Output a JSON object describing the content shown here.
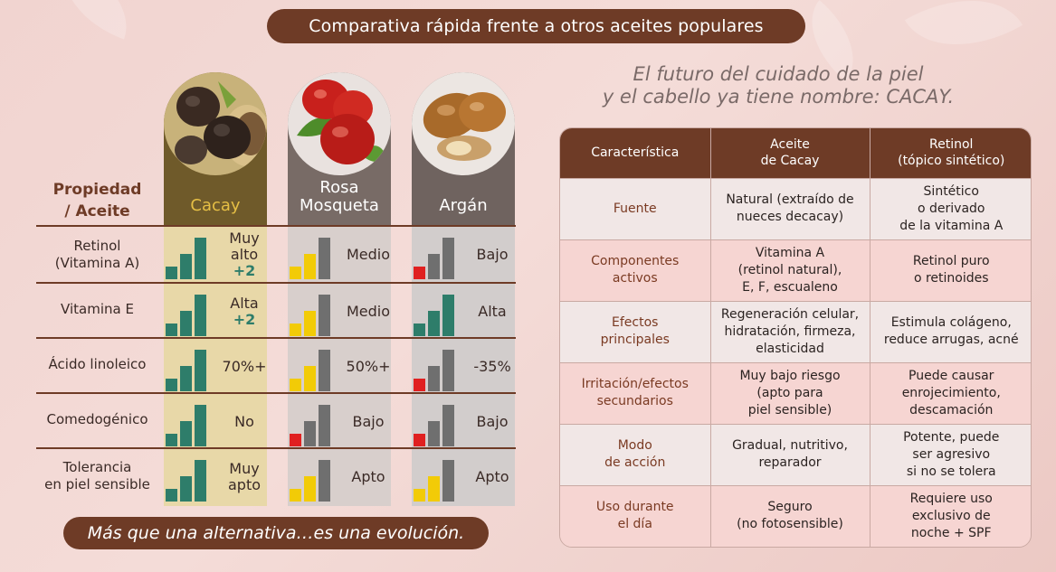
{
  "header": {
    "title": "Comparativa rápida frente a otros aceites populares"
  },
  "tagline": {
    "line1": "El futuro del cuidado de la piel",
    "line2": "y el cabello ya tiene nombre: CACAY."
  },
  "left_table": {
    "property_header_line1": "Propiedad",
    "property_header_line2": "/ Aceite",
    "columns": [
      {
        "name": "Cacay",
        "color": "#d9b13a"
      },
      {
        "name_line1": "Rosa",
        "name_line2": "Mosqueta",
        "color": "#ffffff"
      },
      {
        "name": "Argán",
        "color": "#ffffff"
      }
    ],
    "rows": [
      {
        "label_line1": "Retinol",
        "label_line2": "(Vitamina A)",
        "cacay": {
          "text_line1": "Muy",
          "text_line2": "alto",
          "plus": "+2",
          "level": 3
        },
        "rosa": {
          "text": "Medio",
          "level": 2
        },
        "argan": {
          "text": "Bajo",
          "level": 1
        }
      },
      {
        "label_line1": "Vitamina E",
        "cacay": {
          "text_line1": "Alta",
          "plus": "+2",
          "level": 3
        },
        "rosa": {
          "text": "Medio",
          "level": 2
        },
        "argan": {
          "text": "Alta",
          "level": 3
        }
      },
      {
        "label_line1": "Ácido linoleico",
        "cacay": {
          "text_line1": "70%+",
          "level": 3
        },
        "rosa": {
          "text": "50%+",
          "level": 2
        },
        "argan": {
          "text": "-35%",
          "level": 1
        }
      },
      {
        "label_line1": "Comedogénico",
        "cacay": {
          "text_line1": "No",
          "level": 3
        },
        "rosa": {
          "text": "Bajo",
          "level": 1
        },
        "argan": {
          "text": "Bajo",
          "level": 1
        }
      },
      {
        "label_line1": "Tolerancia",
        "label_line2": "en piel sensible",
        "cacay": {
          "text_line1": "Muy",
          "text_line2": "apto",
          "level": 3
        },
        "rosa": {
          "text": "Apto",
          "level": 2
        },
        "argan": {
          "text": "Apto",
          "level": 2
        }
      }
    ]
  },
  "footer_pill": "Más que una alternativa…es una evolución.",
  "right_table": {
    "headers": [
      "Característica",
      "Aceite de Cacay",
      "Retinol (tópico sintético)"
    ],
    "header_lines": {
      "h2a": "Aceite",
      "h2b": "de Cacay",
      "h3a": "Retinol",
      "h3b": "(tópico sintético)"
    },
    "rows": [
      {
        "c1": [
          "Fuente"
        ],
        "c2": [
          "Natural (extraído de",
          "nueces decacay)"
        ],
        "c3": [
          "Sintético",
          "o derivado",
          "de la vitamina A"
        ]
      },
      {
        "c1": [
          "Componentes",
          "activos"
        ],
        "c2": [
          "Vitamina A",
          "(retinol natural),",
          "E, F, escualeno"
        ],
        "c3": [
          "Retinol puro",
          "o retinoides"
        ]
      },
      {
        "c1": [
          "Efectos",
          "principales"
        ],
        "c2": [
          "Regeneración celular,",
          "hidratación, firmeza,",
          "elasticidad"
        ],
        "c3": [
          "Estimula colágeno,",
          "reduce arrugas, acné"
        ]
      },
      {
        "c1": [
          "Irritación/efectos",
          "secundarios"
        ],
        "c2": [
          "Muy bajo riesgo",
          "(apto para",
          "piel sensible)"
        ],
        "c3": [
          "Puede causar",
          "enrojecimiento,",
          "descamación"
        ]
      },
      {
        "c1": [
          "Modo",
          "de acción"
        ],
        "c2": [
          "Gradual, nutritivo,",
          "reparador"
        ],
        "c3": [
          "Potente, puede",
          "ser agresivo",
          "si no se tolera"
        ]
      },
      {
        "c1": [
          "Uso durante",
          "el día"
        ],
        "c2": [
          "Seguro",
          "(no fotosensible)"
        ],
        "c3": [
          "Requiere uso",
          "exclusivo de",
          "noche + SPF"
        ]
      }
    ]
  },
  "colors": {
    "brown": "#6e3b26",
    "cacay_col": "#e8d8a8",
    "cacay_head": "#6f5a2a",
    "rosa_col": "#d8cfcc",
    "rosa_head": "#786b66",
    "argan_col": "#d2cdcc",
    "argan_head": "#6f635f",
    "teal": "#2e7d6a",
    "yellow": "#f2cb07",
    "gray": "#6f6f6f",
    "red": "#e02020"
  }
}
